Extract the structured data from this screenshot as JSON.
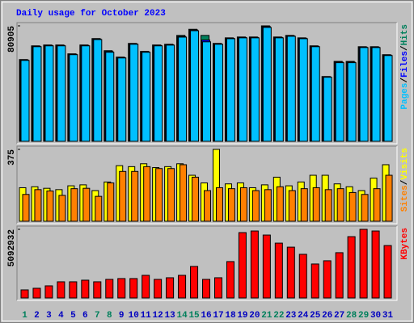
{
  "chart_data": [
    {
      "type": "bar",
      "title": "Daily usage for October 2023",
      "legend_separator": "/",
      "ylim": [
        0,
        80905
      ],
      "yticks": [
        80905
      ],
      "series": [
        {
          "name": "Hits",
          "color": "#00805c",
          "values": [
            57300,
            66900,
            67500,
            67500,
            61300,
            67500,
            72000,
            63500,
            59000,
            68600,
            63000,
            67500,
            68000,
            74200,
            78500,
            74200,
            68600,
            72500,
            73100,
            73100,
            80905,
            73100,
            74200,
            72500,
            66900,
            45400,
            56000,
            56000,
            66300,
            66300,
            60700
          ]
        },
        {
          "name": "Files",
          "color": "#0000ff",
          "values": [
            57000,
            66600,
            67200,
            67200,
            61000,
            67200,
            71700,
            62900,
            58700,
            68300,
            62700,
            67200,
            67700,
            73500,
            78000,
            71000,
            68300,
            72200,
            72800,
            72800,
            80400,
            72800,
            73900,
            72200,
            66600,
            45200,
            55500,
            55500,
            66000,
            66000,
            60400
          ]
        },
        {
          "name": "Pages",
          "color": "#00c0ff",
          "values": [
            56700,
            66300,
            66900,
            66900,
            60700,
            66900,
            71300,
            62400,
            58400,
            68000,
            62400,
            66900,
            67400,
            73000,
            77500,
            69700,
            68000,
            71900,
            72500,
            72500,
            79800,
            72500,
            73600,
            71900,
            66300,
            44900,
            55100,
            55100,
            65700,
            65700,
            60100
          ]
        }
      ]
    },
    {
      "type": "bar",
      "legend_separator": "/",
      "ylim": [
        0,
        375
      ],
      "yticks": [
        375
      ],
      "series": [
        {
          "name": "Visits",
          "color": "#ffff00",
          "values": [
            175,
            180,
            172,
            165,
            185,
            190,
            160,
            205,
            290,
            285,
            300,
            280,
            285,
            300,
            240,
            200,
            375,
            195,
            200,
            175,
            190,
            230,
            185,
            205,
            240,
            240,
            195,
            180,
            160,
            225,
            295
          ]
        },
        {
          "name": "Sites",
          "color": "#ff8000",
          "values": [
            140,
            165,
            158,
            135,
            170,
            172,
            130,
            200,
            260,
            260,
            285,
            275,
            275,
            295,
            230,
            160,
            175,
            170,
            175,
            160,
            165,
            180,
            160,
            170,
            175,
            165,
            170,
            150,
            140,
            170,
            240
          ]
        }
      ]
    },
    {
      "type": "bar",
      "ylim": [
        0,
        5092932
      ],
      "yticks": [
        5092932
      ],
      "categories": [
        "1",
        "2",
        "3",
        "4",
        "5",
        "6",
        "7",
        "8",
        "9",
        "10",
        "11",
        "12",
        "13",
        "14",
        "15",
        "16",
        "17",
        "18",
        "19",
        "20",
        "21",
        "22",
        "23",
        "24",
        "25",
        "26",
        "27",
        "28",
        "29",
        "30",
        "31"
      ],
      "category_colors": [
        "#00805c",
        "#0000c0",
        "#0000c0",
        "#0000c0",
        "#0000c0",
        "#0000c0",
        "#00805c",
        "#00805c",
        "#0000c0",
        "#0000c0",
        "#0000c0",
        "#0000c0",
        "#0000c0",
        "#00805c",
        "#00805c",
        "#0000c0",
        "#0000c0",
        "#0000c0",
        "#0000c0",
        "#0000c0",
        "#00805c",
        "#00805c",
        "#0000c0",
        "#0000c0",
        "#0000c0",
        "#0000c0",
        "#0000c0",
        "#00805c",
        "#00805c",
        "#0000c0",
        "#0000c0"
      ],
      "series": [
        {
          "name": "KBytes",
          "color": "#ff0000",
          "values": [
            600000,
            720000,
            900000,
            1200000,
            1200000,
            1320000,
            1200000,
            1380000,
            1440000,
            1440000,
            1680000,
            1380000,
            1500000,
            1680000,
            2340000,
            1380000,
            1500000,
            2700000,
            4850000,
            4970000,
            4670000,
            4070000,
            3770000,
            3240000,
            2520000,
            2760000,
            3360000,
            4550000,
            5092932,
            4970000,
            3890000
          ]
        }
      ]
    }
  ]
}
